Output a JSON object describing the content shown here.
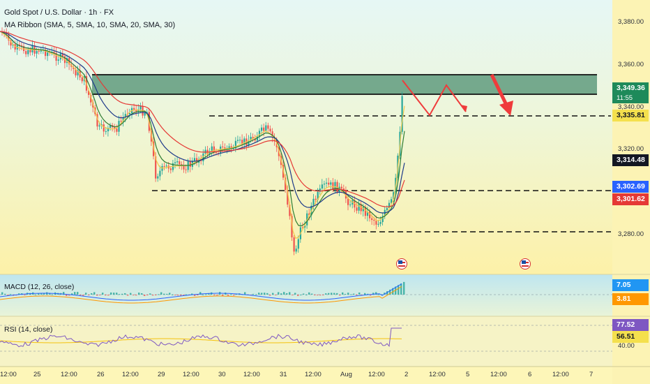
{
  "header": {
    "symbol": "Gold Spot / U.S. Dollar · 1h · FX",
    "indicator": "MA Ribbon (SMA, 5, SMA, 10, SMA, 20, SMA, 30)"
  },
  "price_axis": {
    "ticks": [
      "3,380.00",
      "3,360.00",
      "3,340.00",
      "3,320.00",
      "3,280.00"
    ],
    "badges": {
      "current_price": "3,349.36",
      "countdown": "11:55",
      "level_1": "3,335.81",
      "level_2": "3,314.48",
      "level_3": "3,302.69",
      "level_4": "3,301.62"
    }
  },
  "time_axis": {
    "labels": [
      "12:00",
      "25",
      "12:00",
      "26",
      "12:00",
      "29",
      "12:00",
      "30",
      "12:00",
      "31",
      "12:00",
      "Aug",
      "12:00",
      "2",
      "12:00",
      "5",
      "12:00",
      "6",
      "12:00",
      "7"
    ]
  },
  "macd": {
    "label": "MACD (12, 26, close)",
    "value_1": "7.05",
    "value_2": "3.81"
  },
  "rsi": {
    "label": "RSI (14, close)",
    "value_1": "77.52",
    "value_2": "56.51",
    "level": "40.00"
  },
  "colors": {
    "up": "#26a69a",
    "down": "#ef5350",
    "zone": "#4e8f70",
    "badge_red": "#e53935",
    "badge_dark": "#131722",
    "badge_blue": "#2962ff",
    "badge_yellow": "#f4e04d",
    "macd_badge": "#7e57c2",
    "rsi_badge": "#7e57c2"
  },
  "events": {
    "icon": "us-flag-icon"
  }
}
